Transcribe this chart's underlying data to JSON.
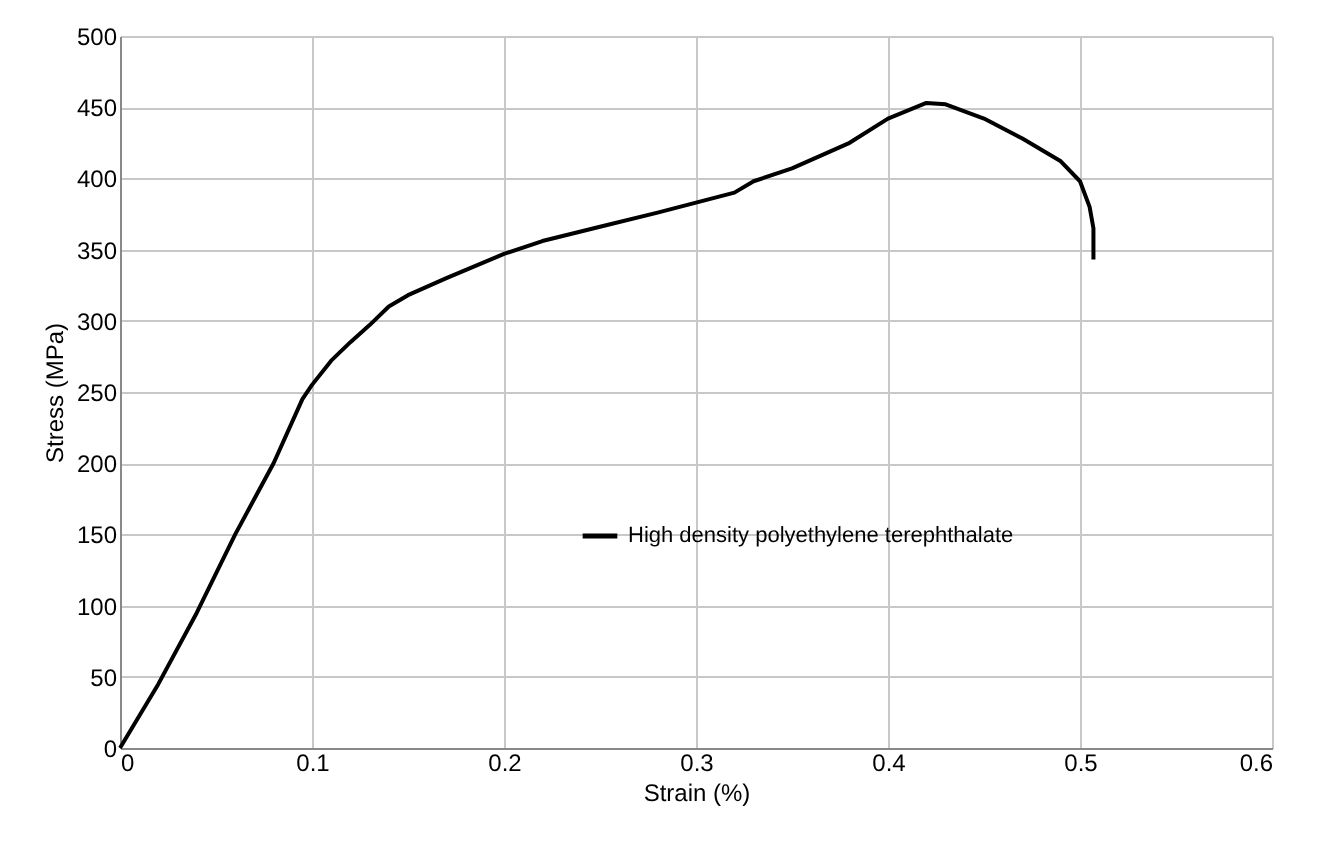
{
  "chart_data": {
    "type": "line",
    "xlabel": "Strain (%)",
    "ylabel": "Stress (MPa)",
    "xlim": [
      0,
      0.6
    ],
    "xticks": [
      0,
      0.1,
      0.2,
      0.3,
      0.4,
      0.5,
      0.6
    ],
    "ylim": [
      0,
      500
    ],
    "yticks": [
      0,
      50,
      100,
      150,
      200,
      250,
      300,
      350,
      400,
      450,
      500
    ],
    "grid": true,
    "legend": "right",
    "marker": "none",
    "line_style": "solid",
    "series": [
      {
        "name": "High density polyethylene terephthalate",
        "color": "#000000",
        "x": [
          0,
          0.02,
          0.04,
          0.06,
          0.08,
          0.095,
          0.1,
          0.11,
          0.12,
          0.13,
          0.14,
          0.15,
          0.17,
          0.2,
          0.22,
          0.25,
          0.28,
          0.3,
          0.32,
          0.33,
          0.35,
          0.38,
          0.4,
          0.42,
          0.43,
          0.45,
          0.47,
          0.49,
          0.5,
          0.505,
          0.507,
          0.507
        ],
        "values": [
          0,
          45,
          95,
          150,
          200,
          245,
          255,
          272,
          285,
          297,
          310,
          318,
          330,
          347,
          356,
          366,
          376,
          383,
          390,
          398,
          407,
          425,
          442,
          453,
          452,
          442,
          428,
          412,
          398,
          380,
          365,
          343
        ]
      }
    ]
  }
}
